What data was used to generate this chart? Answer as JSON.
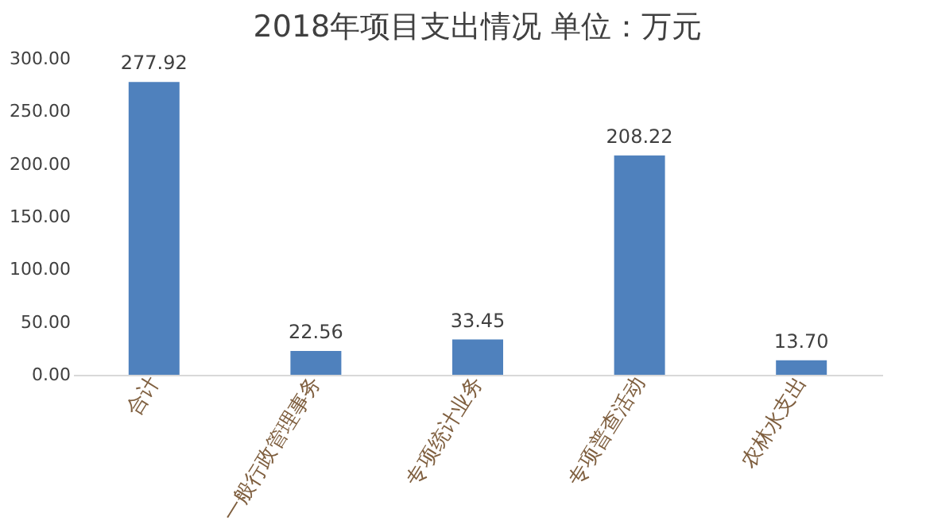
{
  "chart_data": {
    "type": "bar",
    "title": "2018年项目支出情况  单位：万元",
    "categories": [
      "合计",
      "一般行政管理事务",
      "专项统计业务",
      "专项普查活动",
      "农林水支出"
    ],
    "values": [
      277.92,
      22.56,
      33.45,
      208.22,
      13.7
    ],
    "value_labels": [
      "277.92",
      "22.56",
      "33.45",
      "208.22",
      "13.70"
    ],
    "color": "#4f81bd",
    "ylim": [
      0,
      300
    ],
    "yticks": [
      {
        "value": 0,
        "label": "0.00"
      },
      {
        "value": 50,
        "label": "50.00"
      },
      {
        "value": 100,
        "label": "100.00"
      },
      {
        "value": 150,
        "label": "150.00"
      },
      {
        "value": 200,
        "label": "200.00"
      },
      {
        "value": 250,
        "label": "250.00"
      },
      {
        "value": 300,
        "label": "300.00"
      }
    ],
    "grid": false
  }
}
